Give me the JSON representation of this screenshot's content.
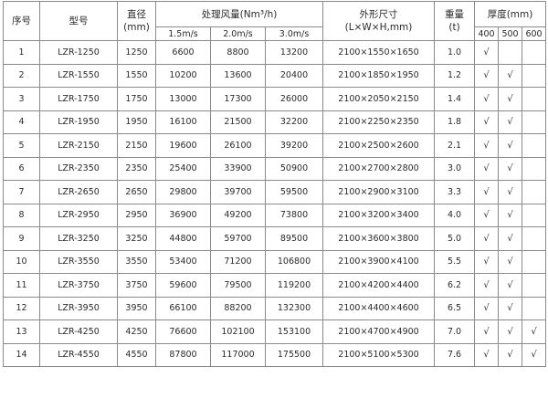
{
  "headers": {
    "seq": "序号",
    "model": "型号",
    "diameter": "直径",
    "diameter_unit": "(mm)",
    "airflow": "处理风量(Nm³/h)",
    "speed1": "1.5m/s",
    "speed2": "2.0m/s",
    "speed3": "3.0m/s",
    "dims": "外形尺寸",
    "dims_unit": "(L×W×H,mm)",
    "weight": "重量",
    "weight_unit": "(t)",
    "thickness": "厚度(mm)",
    "t400": "400",
    "t500": "500",
    "t600": "600"
  },
  "rows": [
    {
      "seq": "1",
      "model": "LZR-1250",
      "diameter": "1250",
      "f1": "6600",
      "f2": "8800",
      "f3": "13200",
      "dims": "2100×1550×1650",
      "weight": "1.0",
      "t400": "√",
      "t500": "",
      "t600": ""
    },
    {
      "seq": "2",
      "model": "LZR-1550",
      "diameter": "1550",
      "f1": "10200",
      "f2": "13600",
      "f3": "20400",
      "dims": "2100×1850×1950",
      "weight": "1.2",
      "t400": "√",
      "t500": "√",
      "t600": ""
    },
    {
      "seq": "3",
      "model": "LZR-1750",
      "diameter": "1750",
      "f1": "13000",
      "f2": "17300",
      "f3": "26000",
      "dims": "2100×2050×2150",
      "weight": "1.4",
      "t400": "√",
      "t500": "√",
      "t600": ""
    },
    {
      "seq": "4",
      "model": "LZR-1950",
      "diameter": "1950",
      "f1": "16100",
      "f2": "21500",
      "f3": "32200",
      "dims": "2100×2250×2350",
      "weight": "1.8",
      "t400": "√",
      "t500": "√",
      "t600": ""
    },
    {
      "seq": "5",
      "model": "LZR-2150",
      "diameter": "2150",
      "f1": "19600",
      "f2": "26100",
      "f3": "39200",
      "dims": "2100×2500×2600",
      "weight": "2.1",
      "t400": "√",
      "t500": "√",
      "t600": ""
    },
    {
      "seq": "6",
      "model": "LZR-2350",
      "diameter": "2350",
      "f1": "25400",
      "f2": "33900",
      "f3": "50900",
      "dims": "2100×2700×2800",
      "weight": "3.0",
      "t400": "√",
      "t500": "√",
      "t600": ""
    },
    {
      "seq": "7",
      "model": "LZR-2650",
      "diameter": "2650",
      "f1": "29800",
      "f2": "39700",
      "f3": "59500",
      "dims": "2100×2900×3100",
      "weight": "3.3",
      "t400": "√",
      "t500": "√",
      "t600": ""
    },
    {
      "seq": "8",
      "model": "LZR-2950",
      "diameter": "2950",
      "f1": "36900",
      "f2": "49200",
      "f3": "73800",
      "dims": "2100×3200×3400",
      "weight": "4.0",
      "t400": "√",
      "t500": "√",
      "t600": ""
    },
    {
      "seq": "9",
      "model": "LZR-3250",
      "diameter": "3250",
      "f1": "44800",
      "f2": "59700",
      "f3": "89500",
      "dims": "2100×3600×3800",
      "weight": "5.0",
      "t400": "√",
      "t500": "√",
      "t600": ""
    },
    {
      "seq": "10",
      "model": "LZR-3550",
      "diameter": "3550",
      "f1": "53400",
      "f2": "71200",
      "f3": "106800",
      "dims": "2100×3900×4100",
      "weight": "5.5",
      "t400": "√",
      "t500": "√",
      "t600": ""
    },
    {
      "seq": "11",
      "model": "LZR-3750",
      "diameter": "3750",
      "f1": "59600",
      "f2": "79500",
      "f3": "119200",
      "dims": "2100×4200×4400",
      "weight": "6.2",
      "t400": "√",
      "t500": "√",
      "t600": ""
    },
    {
      "seq": "12",
      "model": "LZR-3950",
      "diameter": "3950",
      "f1": "66100",
      "f2": "88200",
      "f3": "132300",
      "dims": "2100×4400×4600",
      "weight": "6.5",
      "t400": "√",
      "t500": "√",
      "t600": ""
    },
    {
      "seq": "13",
      "model": "LZR-4250",
      "diameter": "4250",
      "f1": "76600",
      "f2": "102100",
      "f3": "153100",
      "dims": "2100×4700×4900",
      "weight": "7.0",
      "t400": "√",
      "t500": "√",
      "t600": "√"
    },
    {
      "seq": "14",
      "model": "LZR-4550",
      "diameter": "4550",
      "f1": "87800",
      "f2": "117000",
      "f3": "175500",
      "dims": "2100×5100×5300",
      "weight": "7.6",
      "t400": "√",
      "t500": "√",
      "t600": "√"
    }
  ]
}
